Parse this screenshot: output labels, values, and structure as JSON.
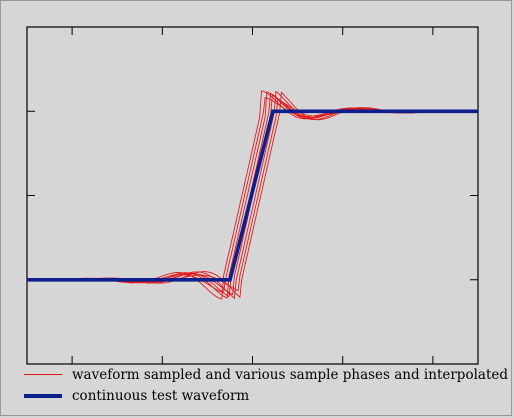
{
  "colors": {
    "background": "#d6d6d6",
    "plot_border": "#000000",
    "sampled_series": "#e31a1c",
    "continuous_series": "#0b1f8f"
  },
  "chart_data": {
    "type": "line",
    "title": "",
    "xlabel": "",
    "ylabel": "",
    "xlim": [
      0,
      10
    ],
    "ylim": [
      -1,
      3
    ],
    "grid": false,
    "x_ticks": [
      1,
      3,
      5,
      7,
      9
    ],
    "y_ticks": [
      0,
      1,
      2
    ],
    "tick_labels_shown": false,
    "legend_position": "bottom",
    "series": [
      {
        "name": "continuous test waveform",
        "style": "thick-line",
        "x": [
          0,
          4.5,
          5.45,
          10
        ],
        "y": [
          0,
          0,
          2,
          2
        ]
      },
      {
        "name": "waveform sampled and various sample phases and interpolated",
        "style": "thin-lines",
        "phase_count": 8,
        "phase_spread": 0.42,
        "transition_start": 4.55,
        "transition_end": 5.4,
        "overshoot_peak": 0.25,
        "ripple_period": 2.0
      }
    ]
  },
  "legend": {
    "items": [
      {
        "label": "waveform sampled and various sample phases and interpolated"
      },
      {
        "label": "continuous test waveform"
      }
    ]
  }
}
